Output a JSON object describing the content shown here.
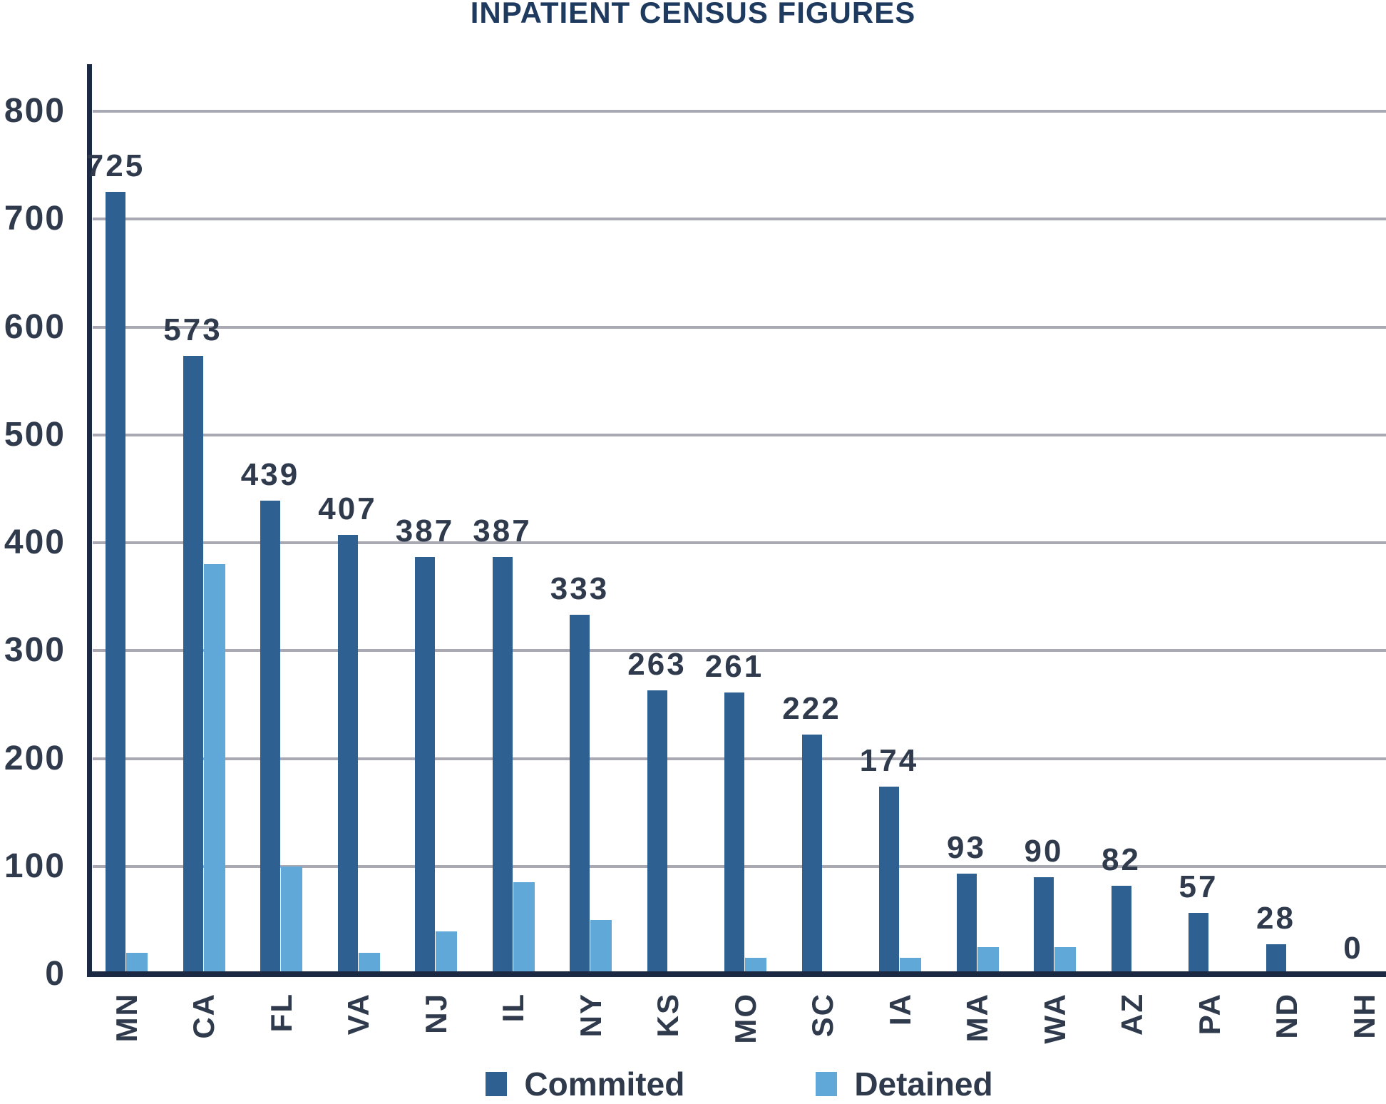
{
  "title": "INPATIENT CENSUS FIGURES",
  "chart_data": {
    "type": "bar",
    "title": "INPATIENT CENSUS FIGURES",
    "categories": [
      "MN",
      "CA",
      "FL",
      "VA",
      "NJ",
      "IL",
      "NY",
      "KS",
      "MO",
      "SC",
      "IA",
      "MA",
      "WA",
      "AZ",
      "PA",
      "ND",
      "NH"
    ],
    "series": [
      {
        "name": "Commited",
        "color": "#2E6191",
        "values": [
          725,
          573,
          439,
          407,
          387,
          387,
          333,
          263,
          261,
          222,
          174,
          93,
          90,
          82,
          57,
          28,
          0
        ]
      },
      {
        "name": "Detained",
        "color": "#5FA8D8",
        "values": [
          20,
          380,
          100,
          20,
          40,
          85,
          50,
          0,
          15,
          0,
          15,
          25,
          25,
          0,
          0,
          0,
          0
        ]
      }
    ],
    "bar_value_labels": [
      "725",
      "573",
      "439",
      "407",
      "387",
      "387",
      "333",
      "263",
      "261",
      "222",
      "174",
      "93",
      "90",
      "82",
      "57",
      "28",
      "0"
    ],
    "value_labels_on_series": "Commited",
    "ylim": [
      0,
      843
    ],
    "yticks": [
      0,
      100,
      200,
      300,
      400,
      500,
      600,
      700,
      800
    ],
    "grid": "horizontal",
    "legend_position": "bottom",
    "colors": {
      "grid_line": "#A9A9B4",
      "axis_line": "#1B2A42",
      "title_text": "#1F3A5F",
      "label_text": "#2F3A4C"
    }
  }
}
